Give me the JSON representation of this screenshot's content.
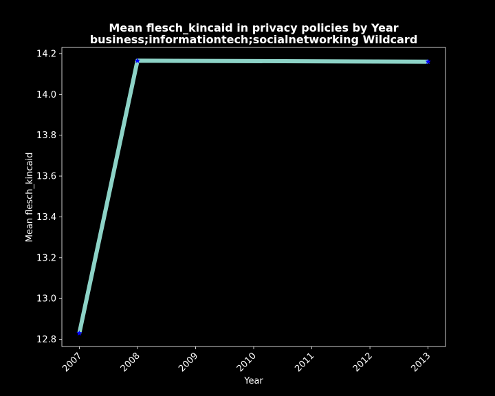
{
  "chart_data": {
    "type": "line",
    "title": "Mean flesch_kincaid in privacy policies by Year",
    "subtitle": "business;informationtech;socialnetworking Wildcard",
    "xlabel": "Year",
    "ylabel": "Mean flesch_kincaid",
    "x_ticks": [
      "2007",
      "2008",
      "2009",
      "2010",
      "2011",
      "2012",
      "2013"
    ],
    "y_ticks": [
      "12.8",
      "13.0",
      "13.2",
      "13.4",
      "13.6",
      "13.8",
      "14.0",
      "14.2"
    ],
    "xlim": [
      2006.7,
      2013.3
    ],
    "ylim": [
      12.765,
      14.23
    ],
    "grid": false,
    "series": [
      {
        "x": [
          2007,
          2008,
          2013
        ],
        "y": [
          12.83,
          14.165,
          14.16
        ],
        "line_color": "#8dd3c7",
        "marker": "star",
        "marker_color": "#0000ff"
      }
    ],
    "background": "#000000",
    "foreground": "#ffffff"
  }
}
